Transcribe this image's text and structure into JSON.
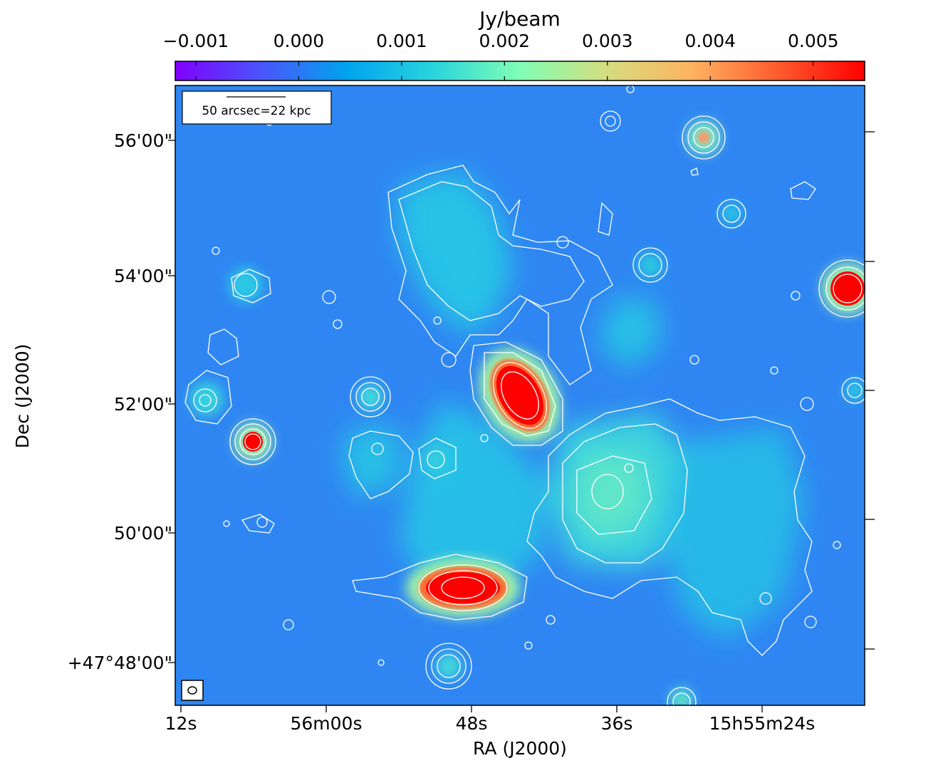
{
  "chart_data": {
    "type": "heatmap",
    "colorbar": {
      "label": "Jy/beam",
      "range": [
        -0.0012,
        0.0055
      ],
      "ticks": [
        -0.001,
        0.0,
        0.001,
        0.002,
        0.003,
        0.004,
        0.005
      ],
      "tick_labels": [
        "−0.001",
        "0.000",
        "0.001",
        "0.002",
        "0.003",
        "0.004",
        "0.005"
      ],
      "colormap": [
        "#8000ff",
        "#2c7ef7",
        "#00b5eb",
        "#2adddd",
        "#80ffb4",
        "#d4dd80",
        "#ffb360",
        "#ff6e38",
        "#ff0000"
      ]
    },
    "xaxis": {
      "label": "RA (J2000)",
      "tick_labels": [
        "12s",
        "56m00s",
        "48s",
        "36s",
        "15h55m24s"
      ]
    },
    "yaxis": {
      "label": "Dec (J2000)",
      "tick_labels": [
        "56'00\"",
        "54'00\"",
        "52'00\"",
        "50'00\"",
        "+47°48'00\""
      ]
    },
    "scalebar_label": "50 arcsec=22 kpc",
    "contours": "white",
    "background_level": 0.0003,
    "sources": [
      {
        "ra": "15h56m05s",
        "dec": "51'25\"",
        "peak": 0.0055
      },
      {
        "ra": "15h55m43s",
        "dec": "52'10\"",
        "peak": 0.0055
      },
      {
        "ra": "15h55m49s",
        "dec": "49'08\"",
        "peak": 0.0055
      },
      {
        "ra": "15h55m19s",
        "dec": "53'45\"",
        "peak": 0.0055
      },
      {
        "ra": "15h55m29s",
        "dec": "56'00\"",
        "peak": 0.004
      },
      {
        "ra": "15h55m35s",
        "dec": "50'40\"",
        "peak": 0.0022
      },
      {
        "ra": "15h56m10s",
        "dec": "52'05\"",
        "peak": 0.0015
      },
      {
        "ra": "15h55m56s",
        "dec": "52'10\"",
        "peak": 0.0015
      },
      {
        "ra": "15h55m48s",
        "dec": "47'58\"",
        "peak": 0.0016
      },
      {
        "ra": "15h56m05s",
        "dec": "53'50\"",
        "peak": 0.0014
      }
    ]
  }
}
